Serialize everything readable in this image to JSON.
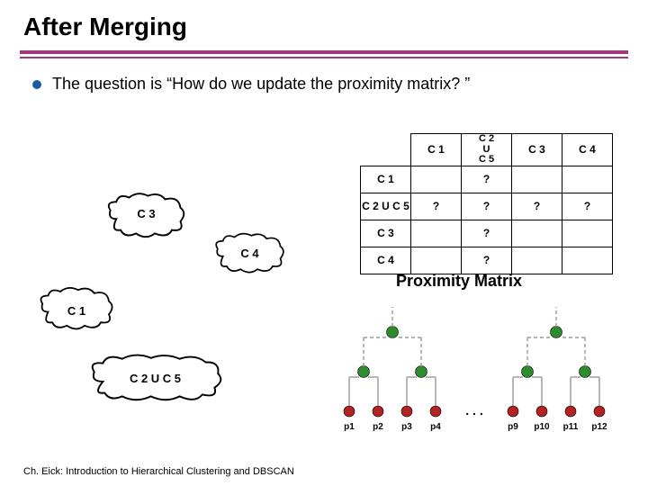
{
  "title": "After Merging",
  "bullet_text": "The question is “How do we update the proximity matrix? ”",
  "footer": "Ch. Eick: Introduction to Hierarchical Clustering and DBSCAN",
  "colors": {
    "accent_rule": "#9e3a7a",
    "bullet": "#1a5c9e",
    "node_green": "#2e8b2e",
    "node_red": "#b22222",
    "line_gray": "#9a9a9a"
  },
  "proximity_matrix": {
    "caption": "Proximity Matrix",
    "col_headers": [
      "C 1",
      "C 2\nU\nC 5",
      "C 3",
      "C 4"
    ],
    "row_headers": [
      "C 1",
      "C 2 U C 5",
      "C 3",
      "C 4"
    ],
    "cells": [
      [
        "",
        "?",
        "",
        ""
      ],
      [
        "?",
        "?",
        "?",
        "?"
      ],
      [
        "",
        "?",
        "",
        ""
      ],
      [
        "",
        "?",
        "",
        ""
      ]
    ]
  },
  "clusters": {
    "c1": "C 1",
    "c2u5": "C 2 U C 5",
    "c3": "C 3",
    "c4": "C 4"
  },
  "dendrogram": {
    "leaves": [
      "p1",
      "p2",
      "p3",
      "p4",
      "p9",
      "p10",
      "p11",
      "p12"
    ],
    "ellipsis": ". . ."
  }
}
